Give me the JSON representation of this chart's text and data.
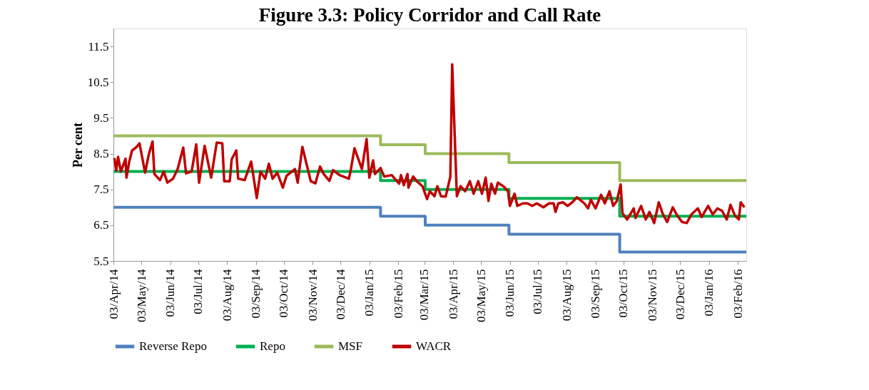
{
  "chart_data": {
    "type": "line",
    "title": "Figure 3.3: Policy Corridor and Call Rate",
    "ylabel": "Per cent",
    "xlim": [
      "2014-04-03",
      "2016-02-12"
    ],
    "ylim": [
      5.5,
      12.0
    ],
    "yticks": [
      5.5,
      6.5,
      7.5,
      8.5,
      9.5,
      10.5,
      11.5
    ],
    "xticks": [
      {
        "value": "2014-04-03",
        "label": "03/Apr/14"
      },
      {
        "value": "2014-05-03",
        "label": "03/May/14"
      },
      {
        "value": "2014-06-03",
        "label": "03/Jun/14"
      },
      {
        "value": "2014-07-03",
        "label": "03/Jul/14"
      },
      {
        "value": "2014-08-03",
        "label": "03/Aug/14"
      },
      {
        "value": "2014-09-03",
        "label": "03/Sep/14"
      },
      {
        "value": "2014-10-03",
        "label": "03/Oct/14"
      },
      {
        "value": "2014-11-03",
        "label": "03/Nov/14"
      },
      {
        "value": "2014-12-03",
        "label": "03/Dec/14"
      },
      {
        "value": "2015-01-03",
        "label": "03/Jan/15"
      },
      {
        "value": "2015-02-03",
        "label": "03/Feb/15"
      },
      {
        "value": "2015-03-03",
        "label": "03/Mar/15"
      },
      {
        "value": "2015-04-03",
        "label": "03/Apr/15"
      },
      {
        "value": "2015-05-03",
        "label": "03/May/15"
      },
      {
        "value": "2015-06-03",
        "label": "03/Jun/15"
      },
      {
        "value": "2015-07-03",
        "label": "03/Jul/15"
      },
      {
        "value": "2015-08-03",
        "label": "03/Aug/15"
      },
      {
        "value": "2015-09-03",
        "label": "03/Sep/15"
      },
      {
        "value": "2015-10-03",
        "label": "03/Oct/15"
      },
      {
        "value": "2015-11-03",
        "label": "03/Nov/15"
      },
      {
        "value": "2015-12-03",
        "label": "03/Dec/15"
      },
      {
        "value": "2016-01-03",
        "label": "03/Jan/16"
      },
      {
        "value": "2016-02-03",
        "label": "03/Feb/16"
      }
    ],
    "legend": "bottom",
    "series": [
      {
        "name": "Reverse Repo",
        "type": "step",
        "color": "#4f81bd",
        "x": [
          "2014-04-03",
          "2015-01-15",
          "2015-03-04",
          "2015-06-02",
          "2015-09-29",
          "2016-02-12"
        ],
        "values": [
          7.0,
          6.75,
          6.5,
          6.25,
          5.75,
          5.75
        ]
      },
      {
        "name": "Repo",
        "type": "step",
        "color": "#00b050",
        "x": [
          "2014-04-03",
          "2015-01-15",
          "2015-03-04",
          "2015-06-02",
          "2015-09-29",
          "2016-02-12"
        ],
        "values": [
          8.0,
          7.75,
          7.5,
          7.25,
          6.75,
          6.75
        ]
      },
      {
        "name": "MSF",
        "type": "step",
        "color": "#9bbb59",
        "x": [
          "2014-04-03",
          "2015-01-15",
          "2015-03-04",
          "2015-06-02",
          "2015-09-29",
          "2016-02-12"
        ],
        "values": [
          9.0,
          8.75,
          8.5,
          8.25,
          7.75,
          7.75
        ]
      },
      {
        "name": "WACR",
        "type": "line",
        "color": "#c00000",
        "x": [
          "2014-04-04",
          "2014-04-06",
          "2014-04-08",
          "2014-04-11",
          "2014-04-16",
          "2014-04-17",
          "2014-04-20",
          "2014-04-23",
          "2014-04-28",
          "2014-05-01",
          "2014-05-07",
          "2014-05-11",
          "2014-05-15",
          "2014-05-17",
          "2014-05-23",
          "2014-05-27",
          "2014-05-31",
          "2014-06-06",
          "2014-06-11",
          "2014-06-17",
          "2014-06-20",
          "2014-06-26",
          "2014-07-01",
          "2014-07-04",
          "2014-07-10",
          "2014-07-17",
          "2014-07-23",
          "2014-07-29",
          "2014-07-31",
          "2014-08-06",
          "2014-08-08",
          "2014-08-13",
          "2014-08-15",
          "2014-08-22",
          "2014-08-29",
          "2014-09-04",
          "2014-09-08",
          "2014-09-13",
          "2014-09-17",
          "2014-09-21",
          "2014-09-26",
          "2014-10-02",
          "2014-10-06",
          "2014-10-15",
          "2014-10-18",
          "2014-10-23",
          "2014-11-01",
          "2014-11-06",
          "2014-11-11",
          "2014-11-15",
          "2014-11-21",
          "2014-11-25",
          "2014-12-02",
          "2014-12-12",
          "2014-12-14",
          "2014-12-18",
          "2014-12-26",
          "2014-12-31",
          "2015-01-03",
          "2015-01-07",
          "2015-01-09",
          "2015-01-15",
          "2015-01-19",
          "2015-01-27",
          "2015-02-04",
          "2015-02-06",
          "2015-02-09",
          "2015-02-13",
          "2015-02-14",
          "2015-02-19",
          "2015-02-23",
          "2015-03-01",
          "2015-03-06",
          "2015-03-09",
          "2015-03-14",
          "2015-03-17",
          "2015-03-21",
          "2015-03-26",
          "2015-03-31",
          "2015-04-02",
          "2015-04-07",
          "2015-04-11",
          "2015-04-16",
          "2015-04-21",
          "2015-04-25",
          "2015-04-30",
          "2015-05-04",
          "2015-05-08",
          "2015-05-11",
          "2015-05-14",
          "2015-05-18",
          "2015-05-21",
          "2015-05-27",
          "2015-06-01",
          "2015-06-03",
          "2015-06-08",
          "2015-06-11",
          "2015-06-17",
          "2015-06-22",
          "2015-06-27",
          "2015-07-02",
          "2015-07-09",
          "2015-07-15",
          "2015-07-20",
          "2015-07-22",
          "2015-07-25",
          "2015-07-30",
          "2015-08-04",
          "2015-08-09",
          "2015-08-14",
          "2015-08-22",
          "2015-08-26",
          "2015-08-29",
          "2015-09-03",
          "2015-09-09",
          "2015-09-13",
          "2015-09-18",
          "2015-09-22",
          "2015-09-26",
          "2015-09-30",
          "2015-10-02",
          "2015-10-07",
          "2015-10-14",
          "2015-10-16",
          "2015-10-22",
          "2015-10-27",
          "2015-10-31",
          "2015-11-05",
          "2015-11-10",
          "2015-11-14",
          "2015-11-19",
          "2015-11-25",
          "2015-11-30",
          "2015-12-05",
          "2015-12-10",
          "2015-12-15",
          "2015-12-22",
          "2015-12-26",
          "2016-01-02",
          "2016-01-07",
          "2016-01-12",
          "2016-01-17",
          "2016-01-22",
          "2016-01-26",
          "2016-01-31",
          "2016-02-04",
          "2016-02-06",
          "2016-02-10"
        ],
        "values": [
          8.38,
          8.03,
          8.41,
          8.0,
          8.36,
          7.83,
          8.28,
          8.59,
          8.69,
          8.79,
          7.97,
          8.48,
          8.84,
          7.93,
          7.76,
          8.0,
          7.69,
          7.8,
          8.07,
          8.67,
          7.95,
          8.0,
          8.76,
          7.69,
          8.72,
          7.83,
          8.81,
          8.79,
          7.73,
          7.73,
          8.34,
          8.59,
          7.8,
          7.76,
          8.28,
          7.26,
          8.0,
          7.8,
          8.22,
          7.8,
          7.97,
          7.55,
          7.88,
          8.07,
          7.69,
          8.69,
          7.73,
          7.67,
          8.14,
          7.93,
          7.74,
          8.04,
          7.9,
          7.8,
          8.04,
          8.65,
          8.07,
          8.91,
          7.83,
          8.31,
          7.93,
          8.1,
          7.86,
          7.9,
          7.66,
          7.9,
          7.62,
          7.93,
          7.55,
          7.86,
          7.73,
          7.59,
          7.23,
          7.45,
          7.31,
          7.59,
          7.31,
          7.3,
          7.86,
          11.0,
          7.31,
          7.59,
          7.45,
          7.73,
          7.38,
          7.73,
          7.38,
          7.83,
          7.18,
          7.66,
          7.38,
          7.69,
          7.59,
          7.45,
          7.04,
          7.38,
          7.04,
          7.11,
          7.11,
          7.04,
          7.11,
          7.0,
          7.11,
          7.11,
          6.87,
          7.11,
          7.14,
          7.04,
          7.14,
          7.28,
          7.11,
          6.97,
          7.21,
          6.97,
          7.35,
          7.11,
          7.45,
          7.04,
          7.18,
          7.64,
          6.83,
          6.66,
          6.97,
          6.7,
          7.04,
          6.66,
          6.87,
          6.56,
          7.14,
          6.83,
          6.59,
          7.0,
          6.76,
          6.59,
          6.56,
          6.8,
          6.97,
          6.73,
          7.04,
          6.8,
          6.97,
          6.9,
          6.66,
          7.07,
          6.76,
          6.66,
          7.14,
          7.0
        ]
      }
    ]
  }
}
